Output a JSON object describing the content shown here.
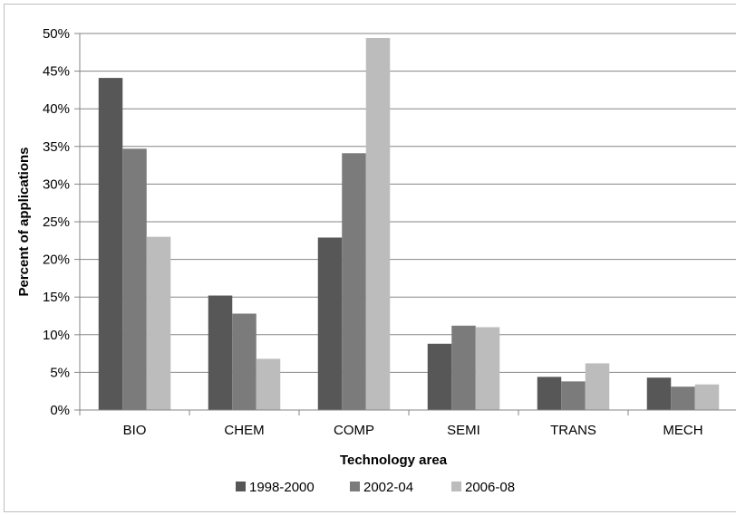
{
  "chart_data": {
    "type": "bar",
    "title": "",
    "xlabel": "Technology area",
    "ylabel": "Percent of applications",
    "categories": [
      "BIO",
      "CHEM",
      "COMP",
      "SEMI",
      "TRANS",
      "MECH"
    ],
    "series": [
      {
        "name": "1998-2000",
        "color": "#575757",
        "values": [
          44.1,
          15.2,
          22.9,
          8.8,
          4.4,
          4.3
        ]
      },
      {
        "name": "2002-04",
        "color": "#7b7b7b",
        "values": [
          34.7,
          12.8,
          34.1,
          11.2,
          3.8,
          3.1
        ]
      },
      {
        "name": "2006-08",
        "color": "#bcbcbc",
        "values": [
          23.0,
          6.8,
          49.4,
          11.0,
          6.2,
          3.4
        ]
      }
    ],
    "ylim": [
      0,
      50
    ],
    "y_ticks": [
      "0%",
      "5%",
      "10%",
      "15%",
      "20%",
      "25%",
      "30%",
      "35%",
      "40%",
      "45%",
      "50%"
    ],
    "grid": true,
    "legend_position": "bottom"
  }
}
